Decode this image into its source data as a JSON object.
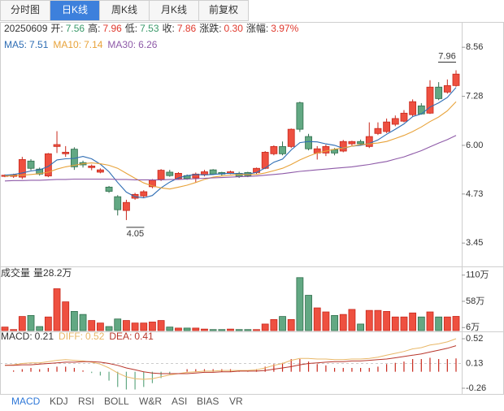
{
  "period_tabs": [
    "分时图",
    "日K线",
    "周K线",
    "月K线",
    "前复权"
  ],
  "active_period": 1,
  "indicator_tabs": [
    "MACD",
    "KDJ",
    "RSI",
    "BOLL",
    "W&R",
    "ASI",
    "BIAS",
    "VR"
  ],
  "active_indicator": 0,
  "chart_data": {
    "type": "candlestick",
    "date": "20250609",
    "info_labels": [
      "开:",
      "高:",
      "低:",
      "收:",
      "涨跌:",
      "涨幅:"
    ],
    "info_colors": [
      "#3a9a6a",
      "#e0382c",
      "#3a9a6a",
      "#e0382c",
      "#e0382c",
      "#e0382c"
    ],
    "change": {
      "value": 0.3,
      "label": "0.30"
    },
    "change_pct": {
      "value": 3.97,
      "label": "3.97%"
    },
    "up_color": "#ee5040",
    "up_edge": "#c8281c",
    "down_color": "#62a883",
    "down_edge": "#2f6e4c",
    "open": [
      5.19,
      5.19,
      5.17,
      5.59,
      5.38,
      5.2,
      5.97,
      5.78,
      5.9,
      5.55,
      5.42,
      5.3,
      4.91,
      4.66,
      4.3,
      4.62,
      4.68,
      4.92,
      5.11,
      5.3,
      5.13,
      5.21,
      5.15,
      5.23,
      5.36,
      5.29,
      5.27,
      5.27,
      5.29,
      5.29,
      5.4,
      5.78,
      5.97,
      5.97,
      7.11,
      6.23,
      5.8,
      5.8,
      5.89,
      5.85,
      6.04,
      6.1,
      5.97,
      6.31,
      6.36,
      6.55,
      6.63,
      6.8,
      7.03,
      6.84,
      7.52,
      7.39,
      7.56
    ],
    "high": [
      5.24,
      5.26,
      5.7,
      5.64,
      5.42,
      5.8,
      6.37,
      5.98,
      5.95,
      5.6,
      5.5,
      5.4,
      4.94,
      4.7,
      4.58,
      4.76,
      4.83,
      5.12,
      5.38,
      5.36,
      5.3,
      5.24,
      5.29,
      5.36,
      5.38,
      5.31,
      5.34,
      5.31,
      5.31,
      5.42,
      5.85,
      6.0,
      6.1,
      6.44,
      7.14,
      6.3,
      5.98,
      6.02,
      5.93,
      6.14,
      6.12,
      6.15,
      6.6,
      6.6,
      6.7,
      6.78,
      6.92,
      7.2,
      7.1,
      7.7,
      7.65,
      7.72,
      7.96
    ],
    "low": [
      5.17,
      5.15,
      5.12,
      5.35,
      5.21,
      5.17,
      5.8,
      5.7,
      5.36,
      5.42,
      5.35,
      5.27,
      4.76,
      4.17,
      4.05,
      4.58,
      4.64,
      4.88,
      5.07,
      5.18,
      5.1,
      5.1,
      5.03,
      5.19,
      5.23,
      5.21,
      5.25,
      5.15,
      5.17,
      5.25,
      5.38,
      5.74,
      5.74,
      5.93,
      6.35,
      5.87,
      5.63,
      5.72,
      5.74,
      5.82,
      5.99,
      5.99,
      5.93,
      6.27,
      6.32,
      6.5,
      6.6,
      6.75,
      6.8,
      6.82,
      7.18,
      7.35,
      7.53
    ],
    "close": [
      5.22,
      5.23,
      5.63,
      5.4,
      5.25,
      5.78,
      6.02,
      5.82,
      5.44,
      5.49,
      5.46,
      5.36,
      4.8,
      4.32,
      4.51,
      4.72,
      4.79,
      5.09,
      5.35,
      5.21,
      5.27,
      5.13,
      5.25,
      5.31,
      5.25,
      5.25,
      5.31,
      5.19,
      5.21,
      5.4,
      5.82,
      5.97,
      5.78,
      6.42,
      6.42,
      5.91,
      5.91,
      5.97,
      5.8,
      6.1,
      6.1,
      6.04,
      6.23,
      6.44,
      6.61,
      6.7,
      6.84,
      7.14,
      6.82,
      7.52,
      7.22,
      7.56,
      7.86
    ],
    "ylim": [
      2.84,
      9.2
    ],
    "yticks": [
      8.56,
      7.28,
      {
        "value": 6,
        "label": "6.00"
      },
      4.73,
      3.45
    ],
    "ma_series": [
      {
        "name": "MA5:",
        "color": "#2e6db4",
        "values": [
          5.22,
          5.24,
          5.28,
          5.33,
          5.36,
          5.45,
          5.62,
          5.65,
          5.66,
          5.71,
          5.65,
          5.51,
          5.31,
          5.03,
          4.78,
          4.66,
          4.63,
          4.69,
          4.89,
          5.04,
          5.15,
          5.21,
          5.24,
          5.23,
          5.24,
          5.26,
          5.27,
          5.26,
          5.25,
          5.29,
          5.41,
          5.56,
          5.64,
          5.88,
          6.07,
          6.1,
          6.09,
          6.04,
          6.0,
          5.92,
          5.98,
          6.0,
          6.05,
          6.14,
          6.29,
          6.42,
          6.56,
          6.75,
          6.82,
          7.0,
          7.11,
          7.25,
          7.51
        ]
      },
      {
        "name": "MA10:",
        "color": "#e8a33a",
        "values": [
          5.2,
          5.21,
          5.22,
          5.24,
          5.26,
          5.3,
          5.38,
          5.44,
          5.48,
          5.52,
          5.54,
          5.52,
          5.48,
          5.4,
          5.27,
          5.14,
          5.02,
          4.94,
          4.89,
          4.86,
          4.91,
          4.96,
          5.03,
          5.11,
          5.17,
          5.2,
          5.22,
          5.24,
          5.24,
          5.24,
          5.28,
          5.34,
          5.4,
          5.5,
          5.62,
          5.72,
          5.8,
          5.85,
          5.9,
          5.93,
          5.98,
          6.02,
          6.04,
          6.06,
          6.1,
          6.18,
          6.26,
          6.36,
          6.48,
          6.62,
          6.74,
          6.9,
          7.14
        ]
      },
      {
        "name": "MA30:",
        "color": "#8e5aa8",
        "values": [
          5.07,
          5.08,
          5.08,
          5.09,
          5.09,
          5.1,
          5.11,
          5.11,
          5.12,
          5.12,
          5.12,
          5.12,
          5.12,
          5.11,
          5.11,
          5.1,
          5.1,
          5.1,
          5.1,
          5.11,
          5.11,
          5.12,
          5.13,
          5.14,
          5.15,
          5.16,
          5.17,
          5.18,
          5.19,
          5.2,
          5.22,
          5.24,
          5.26,
          5.29,
          5.32,
          5.34,
          5.36,
          5.38,
          5.4,
          5.42,
          5.44,
          5.47,
          5.5,
          5.54,
          5.58,
          5.64,
          5.7,
          5.78,
          5.86,
          5.96,
          6.06,
          6.15,
          6.26
        ]
      }
    ],
    "volume": {
      "title": "成交量",
      "label": "量28.2万",
      "ylim": [
        0,
        124
      ],
      "yticks": [
        {
          "value": 110,
          "label": "110万"
        },
        {
          "value": 58,
          "label": "58万"
        },
        {
          "value": 6,
          "label": "6万"
        }
      ],
      "values": [
        7,
        2,
        28,
        30,
        8,
        27,
        83,
        57,
        38,
        32,
        20,
        15,
        8,
        23,
        20,
        15,
        15,
        17,
        20,
        7,
        5,
        5,
        5,
        3,
        2,
        2,
        3,
        2,
        2,
        2,
        13,
        22,
        28,
        22,
        105,
        70,
        45,
        37,
        30,
        32,
        42,
        13,
        40,
        40,
        38,
        27,
        27,
        35,
        27,
        37,
        27,
        27,
        28.2
      ]
    },
    "macd": {
      "name": "MACD:",
      "ylim": [
        -0.35,
        0.61
      ],
      "yticks": [
        0.52,
        0.13,
        -0.26
      ],
      "grid": true,
      "values": [
        0,
        0.02,
        0.04,
        0.06,
        0.04,
        0.06,
        0.08,
        0.08,
        0.06,
        0.02,
        -0.02,
        -0.06,
        -0.14,
        -0.24,
        -0.28,
        -0.28,
        -0.24,
        -0.18,
        -0.1,
        -0.04,
        0,
        0.04,
        0.04,
        0.04,
        0.04,
        0.04,
        0.04,
        0.02,
        0.02,
        0.04,
        0.08,
        0.12,
        0.14,
        0.2,
        0.2,
        0.16,
        0.12,
        0.1,
        0.06,
        0.06,
        0.06,
        0.06,
        0.06,
        0.08,
        0.12,
        0.14,
        0.16,
        0.2,
        0.2,
        0.22,
        0.2,
        0.2,
        0.21
      ],
      "lines": [
        {
          "name": "DIFF:",
          "color": "#e9b868",
          "values": [
            0.1,
            0.11,
            0.13,
            0.14,
            0.14,
            0.16,
            0.18,
            0.19,
            0.18,
            0.17,
            0.15,
            0.12,
            0.06,
            -0.02,
            -0.08,
            -0.11,
            -0.12,
            -0.11,
            -0.08,
            -0.05,
            -0.03,
            -0.01,
            0,
            0.01,
            0.01,
            0.02,
            0.02,
            0.02,
            0.02,
            0.03,
            0.06,
            0.1,
            0.13,
            0.18,
            0.21,
            0.21,
            0.2,
            0.2,
            0.19,
            0.19,
            0.2,
            0.2,
            0.21,
            0.23,
            0.26,
            0.29,
            0.32,
            0.36,
            0.38,
            0.42,
            0.44,
            0.47,
            0.52
          ]
        },
        {
          "name": "DEA:",
          "color": "#b8352a",
          "values": [
            0.1,
            0.1,
            0.11,
            0.11,
            0.12,
            0.13,
            0.14,
            0.15,
            0.15,
            0.16,
            0.16,
            0.15,
            0.13,
            0.1,
            0.06,
            0.03,
            0,
            -0.02,
            -0.03,
            -0.03,
            -0.03,
            -0.03,
            -0.02,
            -0.01,
            -0.01,
            0,
            0,
            0.01,
            0.01,
            0.01,
            0.02,
            0.04,
            0.06,
            0.08,
            0.11,
            0.13,
            0.14,
            0.15,
            0.16,
            0.16,
            0.17,
            0.17,
            0.18,
            0.19,
            0.2,
            0.22,
            0.24,
            0.26,
            0.28,
            0.31,
            0.34,
            0.37,
            0.41
          ]
        }
      ]
    }
  }
}
